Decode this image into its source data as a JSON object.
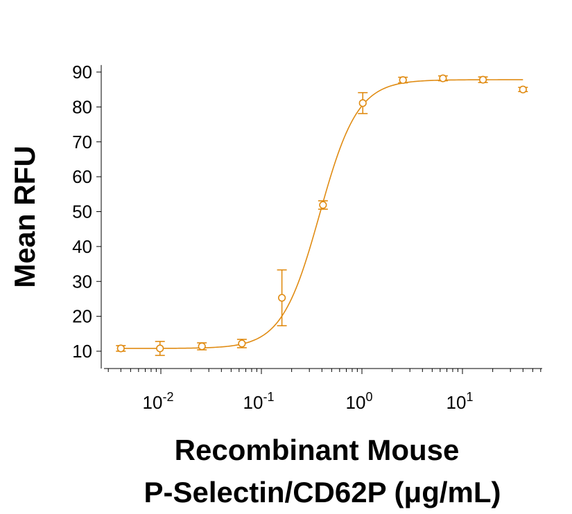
{
  "chart_data": {
    "type": "scatter",
    "title": "",
    "ylabel": "Mean RFU",
    "xlabel_line1": "Recombinant Mouse",
    "xlabel_line2": "P-Selectin/CD62P (μg/mL)",
    "x_scale": "log",
    "xlim": [
      0.0025,
      60
    ],
    "ylim": [
      5,
      92
    ],
    "y_ticks": [
      {
        "value": 10,
        "label": "10"
      },
      {
        "value": 20,
        "label": "20"
      },
      {
        "value": 30,
        "label": "30"
      },
      {
        "value": 40,
        "label": "40"
      },
      {
        "value": 50,
        "label": "50"
      },
      {
        "value": 60,
        "label": "60"
      },
      {
        "value": 70,
        "label": "70"
      },
      {
        "value": 80,
        "label": "80"
      },
      {
        "value": 90,
        "label": "90"
      }
    ],
    "x_ticks": [
      {
        "value": 0.01,
        "base": "10",
        "exp": "-2"
      },
      {
        "value": 0.1,
        "base": "10",
        "exp": "-1"
      },
      {
        "value": 1,
        "base": "10",
        "exp": "0"
      },
      {
        "value": 10,
        "base": "10",
        "exp": "1"
      }
    ],
    "grid": false,
    "color": "#E08B12",
    "series": [
      {
        "points": [
          {
            "x": 0.004,
            "y": 10.8,
            "err": 0.8
          },
          {
            "x": 0.0098,
            "y": 10.8,
            "err": 2.0
          },
          {
            "x": 0.0256,
            "y": 11.4,
            "err": 1.0
          },
          {
            "x": 0.064,
            "y": 12.2,
            "err": 1.2
          },
          {
            "x": 0.16,
            "y": 25.3,
            "err": 8.0
          },
          {
            "x": 0.41,
            "y": 51.9,
            "err": 1.2
          },
          {
            "x": 1.02,
            "y": 81.1,
            "err": 3.0
          },
          {
            "x": 2.56,
            "y": 87.7,
            "err": 0.8
          },
          {
            "x": 6.4,
            "y": 88.2,
            "err": 0.7
          },
          {
            "x": 16,
            "y": 87.8,
            "err": 0.8
          },
          {
            "x": 40,
            "y": 85.0,
            "err": 0.6
          }
        ]
      }
    ],
    "fit": {
      "bottom": 10.8,
      "top": 87.8,
      "ec50": 0.38,
      "hill": 2.3
    }
  }
}
